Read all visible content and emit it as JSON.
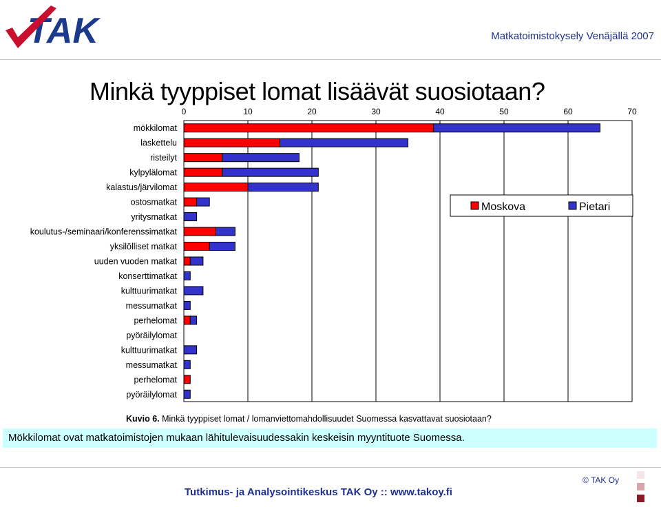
{
  "header": {
    "right_title": "Matkatoimistokysely Venäjällä 2007",
    "logo_text": "TAK"
  },
  "title": "Minkä tyyppiset lomat lisäävät suosiotaan?",
  "chart_data": {
    "type": "bar",
    "orientation": "horizontal",
    "stacked": true,
    "categories": [
      "mökkilomat",
      "laskettelu",
      "risteilyt",
      "kylpylälomat",
      "kalastus/järvilomat",
      "ostosmatkat",
      "yritysmatkat",
      "koulutus-/seminaari/konferenssimatkat",
      "yksilölliset matkat",
      "uuden vuoden matkat",
      "konserttimatkat",
      "kulttuurimatkat",
      "messumatkat",
      "perhelomat",
      "pyöräilylomat",
      "kulttuurimatkat",
      "messumatkat",
      "perhelomat",
      "pyöräilylomat"
    ],
    "series": [
      {
        "name": "Moskova",
        "color": "#ff0000",
        "values": [
          39,
          15,
          6,
          6,
          10,
          2,
          0,
          5,
          4,
          1,
          0,
          0,
          0,
          1,
          0,
          0,
          0,
          1,
          0
        ]
      },
      {
        "name": "Pietari",
        "color": "#3333cc",
        "values": [
          26,
          20,
          12,
          15,
          11,
          2,
          2,
          3,
          4,
          2,
          1,
          3,
          1,
          1,
          0,
          2,
          1,
          0,
          1
        ]
      }
    ],
    "xlim": [
      0,
      70
    ],
    "xticks": [
      "0",
      "10",
      "20",
      "30",
      "40",
      "50",
      "60",
      "70"
    ],
    "grid": true,
    "legend_position": "right"
  },
  "caption": {
    "label": "Kuvio 6.",
    "text": "Minkä tyyppiset lomat / lomanviettomahdollisuudet Suomessa kasvattavat suosiotaan?"
  },
  "note": "Mökkilomat ovat matkatoimistojen mukaan lähitulevaisuudessakin keskeisin myyntituote Suomessa.",
  "footer": {
    "text": "Tutkimus- ja Analysointikeskus TAK Oy  ::  www.takoy.fi",
    "copyright": "© TAK Oy"
  },
  "colors": {
    "brand_blue": "#1f2f8f",
    "note_bg": "#ccffff",
    "square1": "#f4e6e8",
    "square2": "#d8a4ab",
    "square3": "#8b1a26"
  }
}
